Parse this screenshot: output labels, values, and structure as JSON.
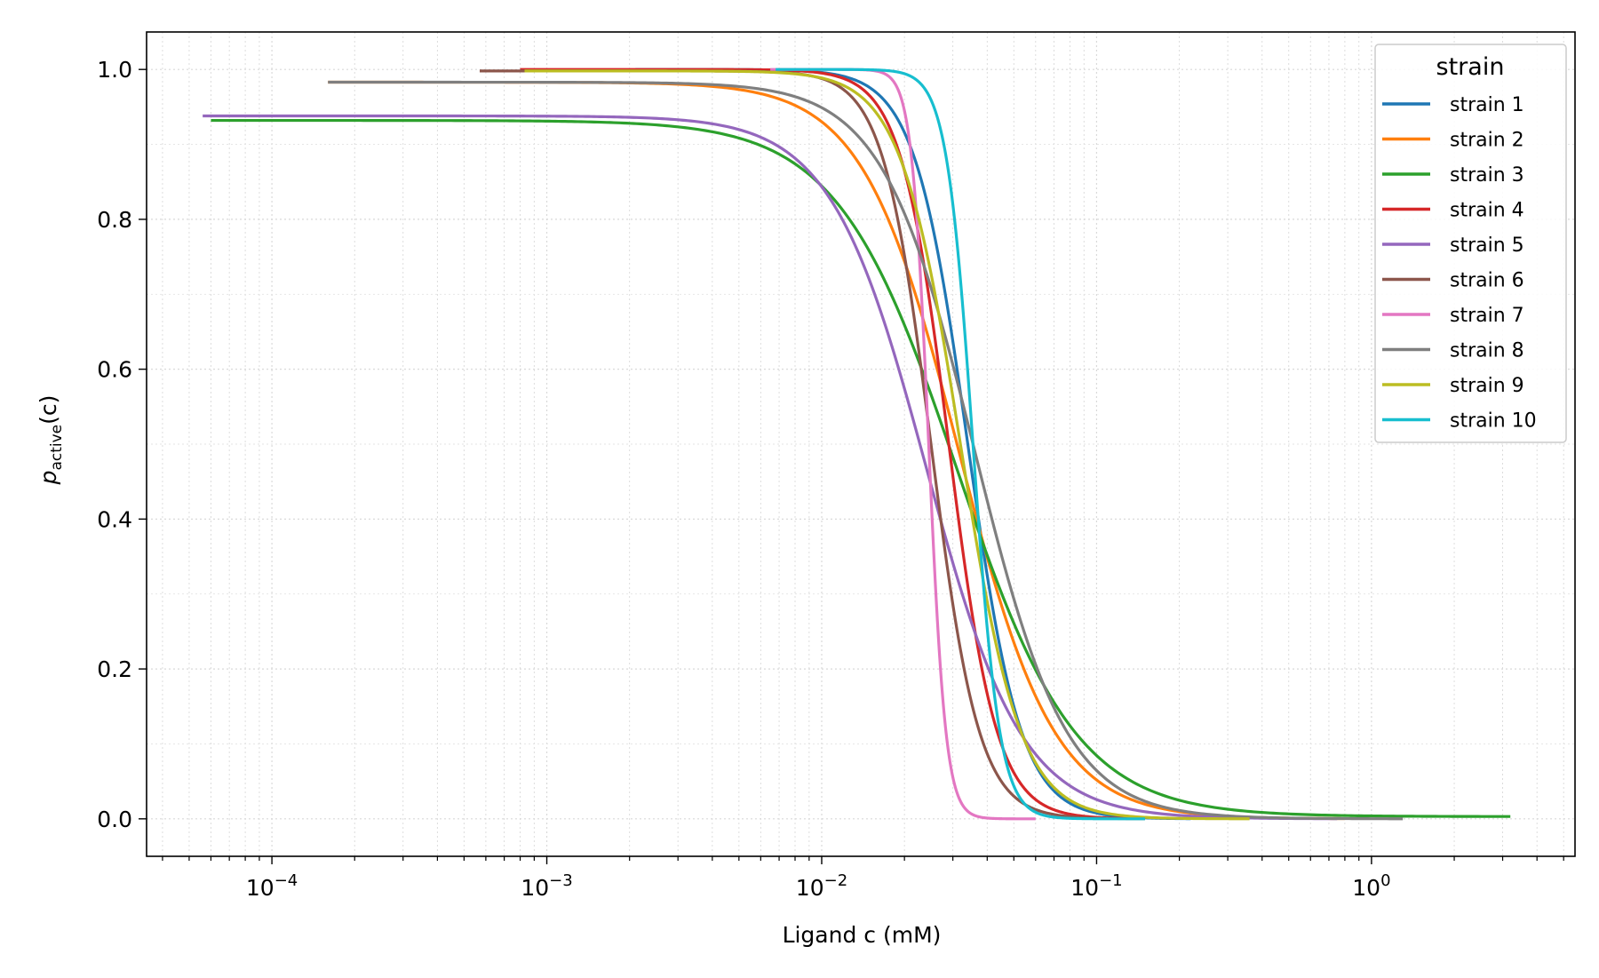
{
  "chart_data": {
    "type": "line",
    "title": "",
    "xlabel": "Ligand c (mM)",
    "ylabel_main": "p",
    "ylabel_sub": "active",
    "ylabel_tail": "(c)",
    "xscale": "log",
    "xlim": [
      3.5e-05,
      5.5
    ],
    "ylim": [
      -0.05,
      1.05
    ],
    "grid": true,
    "x_ticks": [
      {
        "value": 0.0001,
        "base": "10",
        "exp": "−4"
      },
      {
        "value": 0.001,
        "base": "10",
        "exp": "−3"
      },
      {
        "value": 0.01,
        "base": "10",
        "exp": "−2"
      },
      {
        "value": 0.1,
        "base": "10",
        "exp": "−1"
      },
      {
        "value": 1,
        "base": "10",
        "exp": "0"
      }
    ],
    "y_ticks": [
      {
        "value": 0.0,
        "label": "0.0"
      },
      {
        "value": 0.2,
        "label": "0.2"
      },
      {
        "value": 0.4,
        "label": "0.4"
      },
      {
        "value": 0.6,
        "label": "0.6"
      },
      {
        "value": 0.8,
        "label": "0.8"
      },
      {
        "value": 1.0,
        "label": "1.0"
      }
    ],
    "legend": {
      "title": "strain",
      "position": "top-right"
    },
    "series": [
      {
        "name": "strain 1",
        "color": "#1f77b4",
        "top": 1.0,
        "bottom": 0.0,
        "ec50": 0.034,
        "hill": 4.5,
        "xmin": 0.0021,
        "xmax": 0.22
      },
      {
        "name": "strain 2",
        "color": "#ff7f0e",
        "top": 0.983,
        "bottom": 0.0,
        "ec50": 0.0315,
        "hill": 2.5,
        "xmin": 0.00016,
        "xmax": 0.8
      },
      {
        "name": "strain 3",
        "color": "#2ca02c",
        "top": 0.932,
        "bottom": 0.003,
        "ec50": 0.031,
        "hill": 2.0,
        "xmin": 6e-05,
        "xmax": 3.2
      },
      {
        "name": "strain 4",
        "color": "#d62728",
        "top": 1.0,
        "bottom": 0.0,
        "ec50": 0.029,
        "hill": 5.0,
        "xmin": 0.0008,
        "xmax": 0.13
      },
      {
        "name": "strain 5",
        "color": "#9467bd",
        "top": 0.938,
        "bottom": 0.0,
        "ec50": 0.024,
        "hill": 2.5,
        "xmin": 5.6e-05,
        "xmax": 0.75
      },
      {
        "name": "strain 6",
        "color": "#8c564b",
        "top": 0.998,
        "bottom": 0.0,
        "ec50": 0.025,
        "hill": 5.0,
        "xmin": 0.00057,
        "xmax": 0.15
      },
      {
        "name": "strain 7",
        "color": "#e377c2",
        "top": 1.0,
        "bottom": 0.0,
        "ec50": 0.0245,
        "hill": 14.0,
        "xmin": 0.0065,
        "xmax": 0.06
      },
      {
        "name": "strain 8",
        "color": "#7f7f7f",
        "top": 0.983,
        "bottom": 0.0,
        "ec50": 0.036,
        "hill": 2.6,
        "xmin": 0.00016,
        "xmax": 1.3
      },
      {
        "name": "strain 9",
        "color": "#bcbd22",
        "top": 0.998,
        "bottom": 0.0,
        "ec50": 0.032,
        "hill": 4.0,
        "xmin": 0.00083,
        "xmax": 0.36
      },
      {
        "name": "strain 10",
        "color": "#17becf",
        "top": 1.0,
        "bottom": 0.0,
        "ec50": 0.0355,
        "hill": 9.0,
        "xmin": 0.0068,
        "xmax": 0.15
      }
    ]
  }
}
